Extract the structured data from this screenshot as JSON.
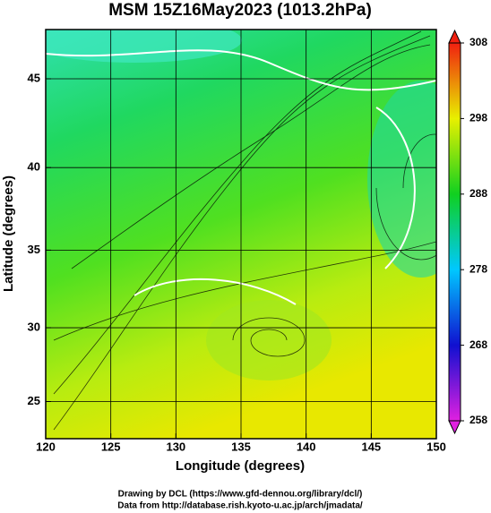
{
  "chart_data": {
    "type": "map",
    "title": "MSM 15Z16May2023 (1013.2hPa)",
    "x_label": "Longitude (degrees)",
    "y_label": "Latitude  (degrees)",
    "xlim": [
      120,
      150
    ],
    "xticks": [
      120,
      125,
      130,
      135,
      140,
      145,
      150
    ],
    "ylim": [
      22.4,
      47.6
    ],
    "yticks": [
      25,
      30,
      35,
      40,
      45
    ],
    "y_scale": "mercator",
    "grid": true,
    "colorbar": {
      "lim": [
        258,
        308
      ],
      "ticks": [
        258,
        268,
        278,
        288,
        298,
        308
      ],
      "colors": [
        "#e020e0",
        "#1010d0",
        "#00c8ff",
        "#10d020",
        "#e8f000",
        "#f02010"
      ]
    },
    "footer": [
      "Drawing by DCL (https://www.gfd-dennou.org/library/dcl/)",
      "Data from http://database.rish.kyoto-u.ac.jp/arch/jmadata/"
    ]
  }
}
